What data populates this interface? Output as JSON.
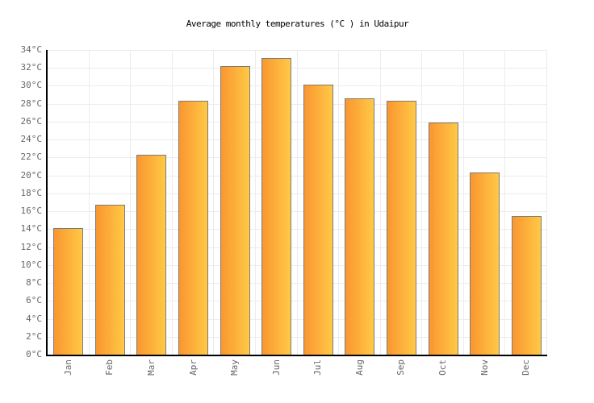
{
  "chart_data": {
    "type": "bar",
    "title": "Average monthly temperatures (°C ) in Udaipur",
    "categories": [
      "Jan",
      "Feb",
      "Mar",
      "Apr",
      "May",
      "Jun",
      "Jul",
      "Aug",
      "Sep",
      "Oct",
      "Nov",
      "Dec"
    ],
    "values": [
      14.1,
      16.7,
      22.3,
      28.3,
      32.2,
      33.1,
      30.1,
      28.6,
      28.3,
      25.9,
      20.3,
      15.5
    ],
    "unit": "°C",
    "xlabel": "",
    "ylabel": "",
    "ylim": [
      0,
      34
    ],
    "ytick_step": 2,
    "y_ticks": [
      "0°C",
      "2°C",
      "4°C",
      "6°C",
      "8°C",
      "10°C",
      "12°C",
      "14°C",
      "16°C",
      "18°C",
      "20°C",
      "22°C",
      "24°C",
      "26°C",
      "28°C",
      "30°C",
      "32°C",
      "34°C"
    ],
    "grid": true,
    "legend_position": "none",
    "x_tick_rotation_deg": -90,
    "colors": {
      "bar_gradient_start": "#FA9630",
      "bar_gradient_end": "#FFC946",
      "bar_border": "#7B7B7B",
      "gridline": "#ECECEC",
      "axis": "#000000",
      "tick_label": "#666666",
      "title": "#000000",
      "background": "#FFFFFF"
    }
  }
}
